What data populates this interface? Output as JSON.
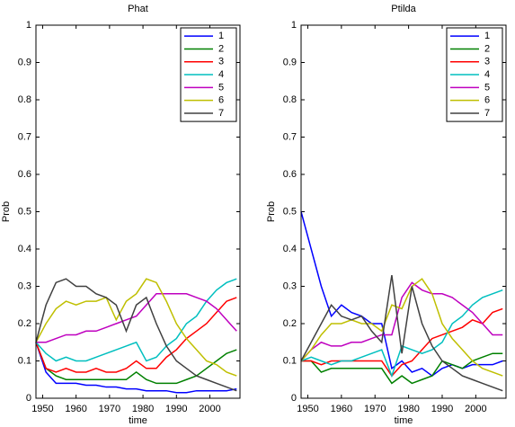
{
  "chart_data": [
    {
      "type": "line",
      "title": "Phat",
      "xlabel": "time",
      "ylabel": "Prob",
      "x": [
        1948,
        1951,
        1954,
        1957,
        1960,
        1963,
        1966,
        1969,
        1972,
        1975,
        1978,
        1981,
        1984,
        1987,
        1990,
        1993,
        1996,
        1999,
        2002,
        2005,
        2008
      ],
      "xlim": [
        1948,
        2009
      ],
      "xticks": [
        1950,
        1960,
        1970,
        1980,
        1990,
        2000
      ],
      "ylim": [
        0,
        1
      ],
      "yticks": [
        0,
        0.1,
        0.2,
        0.3,
        0.4,
        0.5,
        0.6,
        0.7,
        0.8,
        0.9,
        1
      ],
      "legend": "upper right",
      "series": [
        {
          "name": "1",
          "color": "#0000ff",
          "values": [
            0.15,
            0.07,
            0.04,
            0.04,
            0.04,
            0.035,
            0.035,
            0.03,
            0.03,
            0.025,
            0.025,
            0.02,
            0.02,
            0.02,
            0.015,
            0.015,
            0.02,
            0.02,
            0.02,
            0.02,
            0.025
          ]
        },
        {
          "name": "2",
          "color": "#008000",
          "values": [
            0.15,
            0.08,
            0.06,
            0.05,
            0.05,
            0.05,
            0.05,
            0.05,
            0.05,
            0.05,
            0.07,
            0.05,
            0.04,
            0.04,
            0.04,
            0.05,
            0.06,
            0.08,
            0.1,
            0.12,
            0.13
          ]
        },
        {
          "name": "3",
          "color": "#ff0000",
          "values": [
            0.15,
            0.08,
            0.07,
            0.08,
            0.07,
            0.07,
            0.08,
            0.07,
            0.07,
            0.08,
            0.1,
            0.08,
            0.08,
            0.11,
            0.13,
            0.16,
            0.18,
            0.2,
            0.23,
            0.26,
            0.27
          ]
        },
        {
          "name": "4",
          "color": "#00bfbf",
          "values": [
            0.15,
            0.12,
            0.1,
            0.11,
            0.1,
            0.1,
            0.11,
            0.12,
            0.13,
            0.14,
            0.15,
            0.1,
            0.11,
            0.14,
            0.16,
            0.2,
            0.22,
            0.26,
            0.29,
            0.31,
            0.32
          ]
        },
        {
          "name": "5",
          "color": "#bf00bf",
          "values": [
            0.15,
            0.15,
            0.16,
            0.17,
            0.17,
            0.18,
            0.18,
            0.19,
            0.2,
            0.21,
            0.22,
            0.25,
            0.28,
            0.28,
            0.28,
            0.28,
            0.27,
            0.26,
            0.24,
            0.21,
            0.18
          ]
        },
        {
          "name": "6",
          "color": "#bfbf00",
          "values": [
            0.15,
            0.2,
            0.24,
            0.26,
            0.25,
            0.26,
            0.26,
            0.27,
            0.21,
            0.26,
            0.28,
            0.32,
            0.31,
            0.26,
            0.2,
            0.16,
            0.13,
            0.1,
            0.09,
            0.07,
            0.06
          ]
        },
        {
          "name": "7",
          "color": "#404040",
          "values": [
            0.15,
            0.25,
            0.31,
            0.32,
            0.3,
            0.3,
            0.28,
            0.27,
            0.25,
            0.18,
            0.25,
            0.27,
            0.2,
            0.14,
            0.1,
            0.08,
            0.06,
            0.05,
            0.04,
            0.03,
            0.02
          ]
        }
      ]
    },
    {
      "type": "line",
      "title": "Ptilda",
      "xlabel": "time",
      "ylabel": "Prob",
      "x": [
        1948,
        1951,
        1954,
        1957,
        1960,
        1963,
        1966,
        1969,
        1972,
        1975,
        1978,
        1981,
        1984,
        1987,
        1990,
        1993,
        1996,
        1999,
        2002,
        2005,
        2008
      ],
      "xlim": [
        1948,
        2009
      ],
      "xticks": [
        1950,
        1960,
        1970,
        1980,
        1990,
        2000
      ],
      "ylim": [
        0,
        1
      ],
      "yticks": [
        0,
        0.1,
        0.2,
        0.3,
        0.4,
        0.5,
        0.6,
        0.7,
        0.8,
        0.9,
        1
      ],
      "legend": "upper right",
      "series": [
        {
          "name": "1",
          "color": "#0000ff",
          "values": [
            0.5,
            0.4,
            0.3,
            0.22,
            0.25,
            0.23,
            0.22,
            0.2,
            0.2,
            0.08,
            0.1,
            0.07,
            0.08,
            0.06,
            0.08,
            0.09,
            0.08,
            0.09,
            0.09,
            0.09,
            0.1
          ]
        },
        {
          "name": "2",
          "color": "#008000",
          "values": [
            0.1,
            0.1,
            0.07,
            0.08,
            0.08,
            0.08,
            0.08,
            0.08,
            0.08,
            0.04,
            0.06,
            0.04,
            0.05,
            0.06,
            0.1,
            0.09,
            0.08,
            0.1,
            0.11,
            0.12,
            0.12
          ]
        },
        {
          "name": "3",
          "color": "#ff0000",
          "values": [
            0.1,
            0.1,
            0.09,
            0.1,
            0.1,
            0.1,
            0.1,
            0.1,
            0.1,
            0.06,
            0.09,
            0.1,
            0.13,
            0.16,
            0.17,
            0.18,
            0.19,
            0.21,
            0.2,
            0.23,
            0.24
          ]
        },
        {
          "name": "4",
          "color": "#00bfbf",
          "values": [
            0.1,
            0.11,
            0.1,
            0.09,
            0.1,
            0.1,
            0.11,
            0.12,
            0.13,
            0.06,
            0.14,
            0.13,
            0.12,
            0.13,
            0.15,
            0.2,
            0.22,
            0.25,
            0.27,
            0.28,
            0.29
          ]
        },
        {
          "name": "5",
          "color": "#bf00bf",
          "values": [
            0.1,
            0.13,
            0.15,
            0.14,
            0.14,
            0.15,
            0.15,
            0.16,
            0.17,
            0.17,
            0.27,
            0.31,
            0.29,
            0.28,
            0.28,
            0.27,
            0.25,
            0.23,
            0.2,
            0.17,
            0.17
          ]
        },
        {
          "name": "6",
          "color": "#bfbf00",
          "values": [
            0.1,
            0.13,
            0.17,
            0.2,
            0.2,
            0.21,
            0.2,
            0.2,
            0.18,
            0.25,
            0.24,
            0.3,
            0.32,
            0.28,
            0.2,
            0.16,
            0.13,
            0.1,
            0.08,
            0.07,
            0.06
          ]
        },
        {
          "name": "7",
          "color": "#404040",
          "values": [
            0.1,
            0.15,
            0.2,
            0.25,
            0.22,
            0.21,
            0.22,
            0.18,
            0.15,
            0.33,
            0.12,
            0.3,
            0.2,
            0.14,
            0.1,
            0.08,
            0.06,
            0.05,
            0.04,
            0.03,
            0.02
          ]
        }
      ]
    }
  ]
}
